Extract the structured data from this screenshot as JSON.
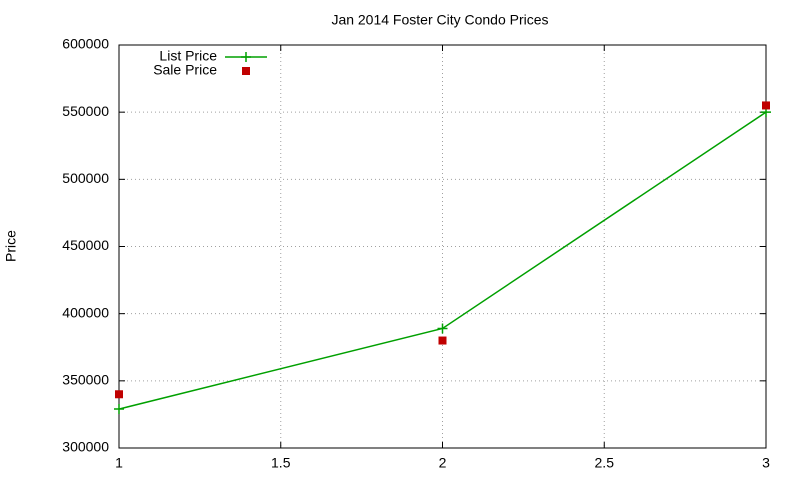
{
  "chart_data": {
    "type": "line",
    "title": "Jan 2014 Foster City Condo Prices",
    "ylabel": "Price",
    "x": [
      1,
      2,
      3
    ],
    "series": [
      {
        "name": "List Price",
        "color": "#00a000",
        "line": true,
        "marker": "plus",
        "values": [
          329000,
          389000,
          550000
        ]
      },
      {
        "name": "Sale Price",
        "color": "#c00000",
        "line": false,
        "marker": "square",
        "values": [
          340000,
          380000,
          555000
        ]
      }
    ],
    "xlim": [
      1,
      3
    ],
    "xticks": [
      1,
      1.5,
      2,
      2.5,
      3
    ],
    "ylim": [
      300000,
      600000
    ],
    "yticks": [
      300000,
      350000,
      400000,
      450000,
      500000,
      550000,
      600000
    ],
    "grid": true,
    "legend": "top-left"
  }
}
